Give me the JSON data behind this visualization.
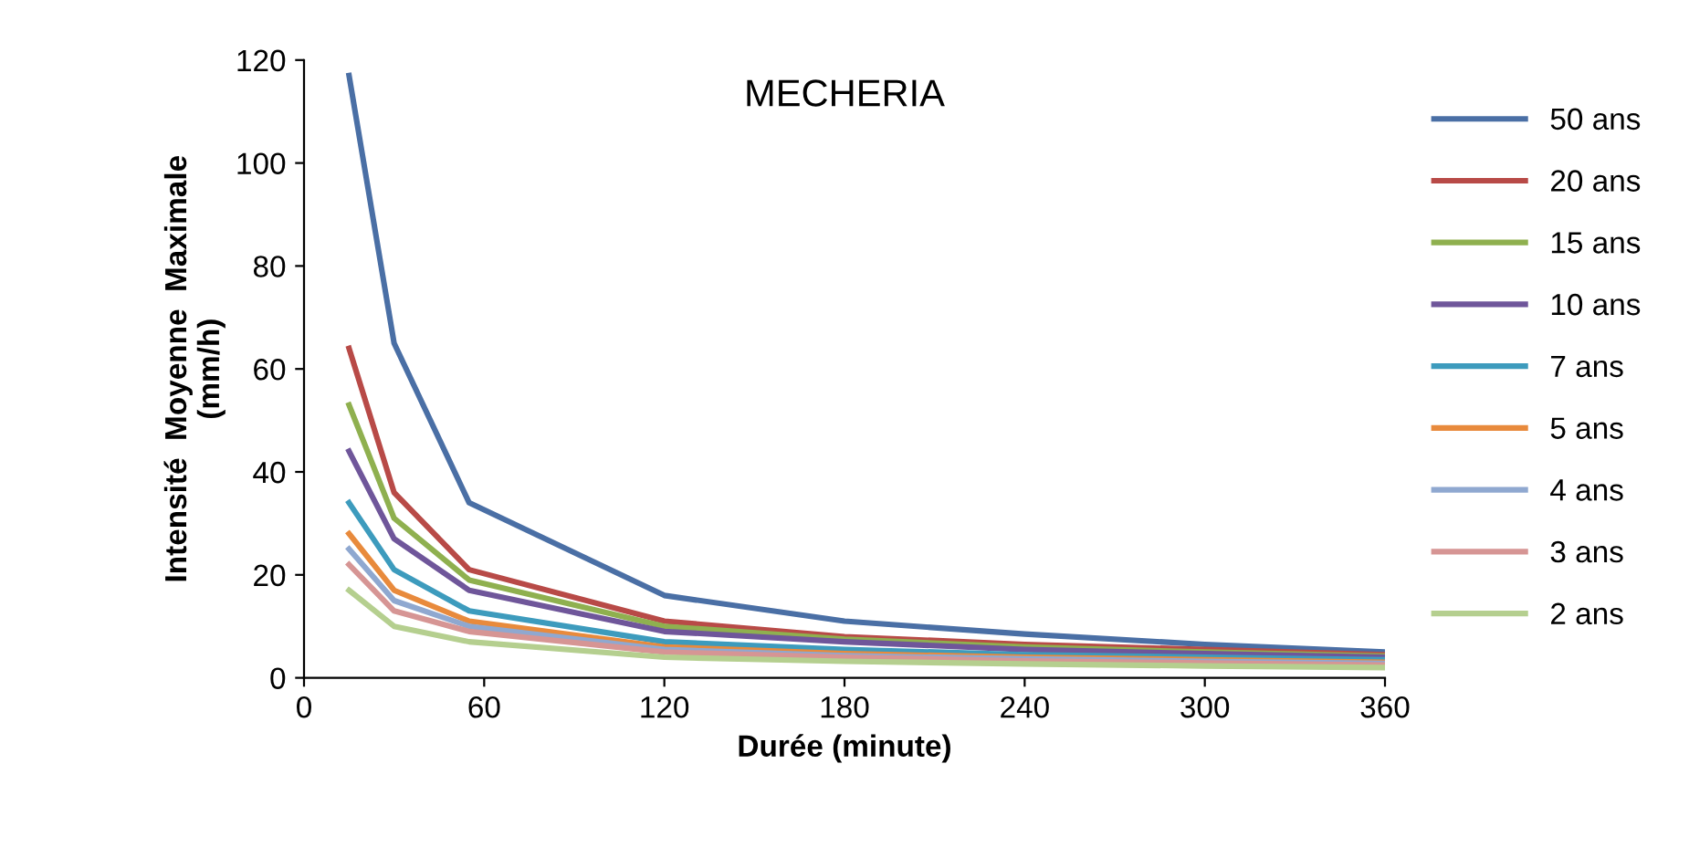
{
  "chart_data": {
    "type": "line",
    "title": "MECHERIA",
    "xlabel": "Durée (minute)",
    "ylabel": "Intensité  Moyenne  Maximale\n(mm/h)",
    "x": [
      15,
      30,
      55,
      120,
      180,
      240,
      300,
      360
    ],
    "series": [
      {
        "name": "50 ans",
        "color": "#4a6fa5",
        "values": [
          117,
          65,
          34,
          16,
          11,
          8.5,
          6.5,
          5
        ]
      },
      {
        "name": "20 ans",
        "color": "#b84a47",
        "values": [
          64,
          36,
          21,
          11,
          8,
          6.5,
          5.5,
          4.5
        ]
      },
      {
        "name": "15 ans",
        "color": "#8fb04f",
        "values": [
          53,
          31,
          19,
          10,
          7.5,
          6,
          5,
          4.2
        ]
      },
      {
        "name": "10 ans",
        "color": "#6f569a",
        "values": [
          44,
          27,
          17,
          9,
          7,
          5.5,
          4.7,
          4
        ]
      },
      {
        "name": "7 ans",
        "color": "#3d9bbd",
        "values": [
          34,
          21,
          13,
          7,
          5.5,
          4.5,
          4,
          3.5
        ]
      },
      {
        "name": "5 ans",
        "color": "#e88a3c",
        "values": [
          28,
          17,
          11,
          6,
          4.7,
          4,
          3.5,
          3
        ]
      },
      {
        "name": "4 ans",
        "color": "#8fa8d0",
        "values": [
          25,
          15,
          10,
          5.5,
          4.3,
          3.7,
          3.2,
          2.8
        ]
      },
      {
        "name": "3 ans",
        "color": "#d69594",
        "values": [
          22,
          13,
          9,
          5,
          4,
          3.3,
          2.9,
          2.5
        ]
      },
      {
        "name": "2 ans",
        "color": "#b5cf8f",
        "values": [
          17,
          10,
          7,
          4,
          3.2,
          2.7,
          2.3,
          2
        ]
      }
    ],
    "xlim": [
      0,
      360
    ],
    "xticks": [
      0,
      60,
      120,
      180,
      240,
      300,
      360
    ],
    "ylim": [
      0,
      120
    ],
    "yticks": [
      0,
      20,
      40,
      60,
      80,
      100,
      120
    ],
    "grid": false,
    "legend": "right",
    "marker": "none",
    "line_style": "solid"
  }
}
